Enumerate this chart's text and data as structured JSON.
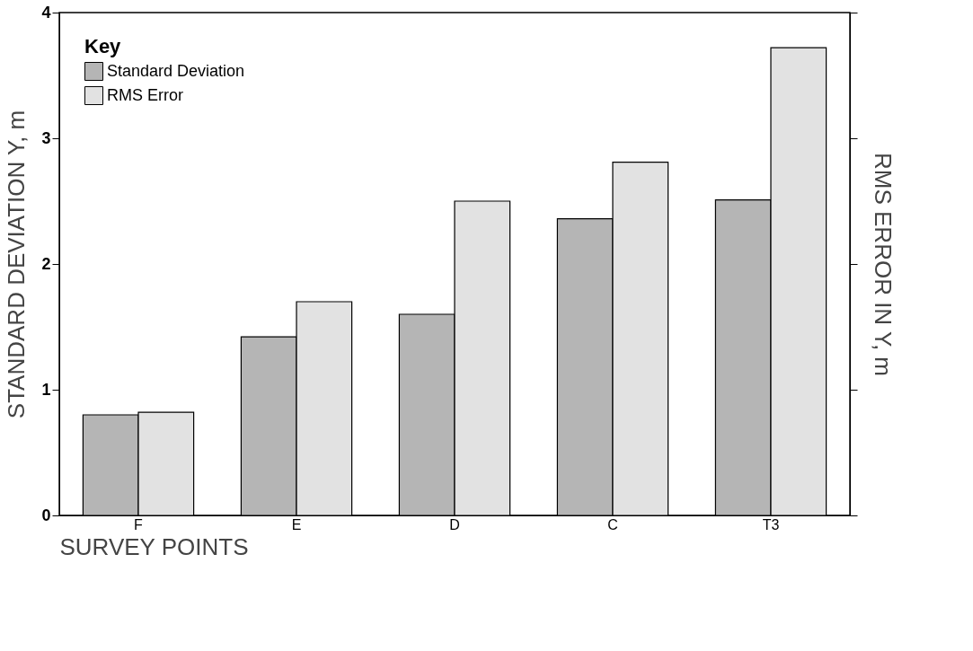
{
  "chart_data": {
    "type": "bar",
    "xlabel": "SURVEY POINTS",
    "ylabel": "STANDARD DEVIATION Y, m",
    "y2label": "RMS ERROR IN Y, m",
    "legend_title": "Key",
    "categories": [
      "F",
      "E",
      "D",
      "C",
      "T3"
    ],
    "series": [
      {
        "name": "Standard Deviation",
        "color": "#b5b5b5",
        "values": [
          0.8,
          1.42,
          1.6,
          2.36,
          2.51
        ]
      },
      {
        "name": "RMS Error",
        "color": "#e2e2e2",
        "values": [
          0.82,
          1.7,
          2.5,
          2.81,
          3.72
        ]
      }
    ],
    "ylim": [
      0,
      4
    ],
    "yticks": [
      0,
      1,
      2,
      3,
      4
    ],
    "legend": "top left",
    "grid": false
  }
}
